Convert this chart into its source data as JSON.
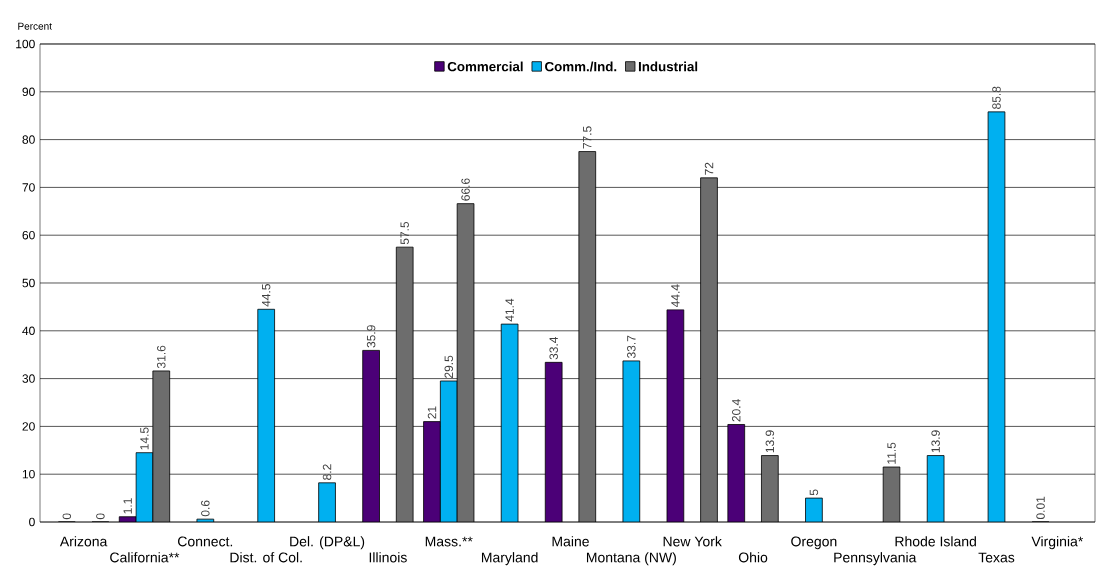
{
  "chart_data": {
    "type": "bar",
    "ylabel": "Percent",
    "categories": [
      "Arizona",
      "California**",
      "Connect.",
      "Dist. of Col.",
      "Del. (DP&L)",
      "Illinois",
      "Mass.**",
      "Maryland",
      "Maine",
      "Montana (NW)",
      "New York",
      "Ohio",
      "Oregon",
      "Pennsylvania",
      "Rhode Island",
      "Texas",
      "Virginia*"
    ],
    "series": [
      {
        "name": "Commercial",
        "color": "#4b0077",
        "values": [
          0,
          1.1,
          null,
          null,
          null,
          35.9,
          21,
          null,
          33.4,
          null,
          44.4,
          20.4,
          null,
          null,
          null,
          null,
          0.01
        ]
      },
      {
        "name": "Comm./Ind.",
        "color": "#00b0f0",
        "values": [
          null,
          14.5,
          0.6,
          44.5,
          8.2,
          null,
          29.5,
          41.4,
          null,
          33.7,
          null,
          null,
          5,
          null,
          13.9,
          85.8,
          null
        ]
      },
      {
        "name": "Industrial",
        "color": "#6d6d6d",
        "values": [
          0,
          31.6,
          null,
          null,
          null,
          57.5,
          66.6,
          null,
          77.5,
          null,
          72,
          13.9,
          null,
          11.5,
          null,
          null,
          null
        ]
      }
    ],
    "ylim": [
      0,
      100
    ],
    "yticks": [
      0,
      10,
      20,
      30,
      40,
      50,
      60,
      70,
      80,
      90,
      100
    ],
    "grid": "y",
    "legend": "top",
    "data_labels": true
  }
}
